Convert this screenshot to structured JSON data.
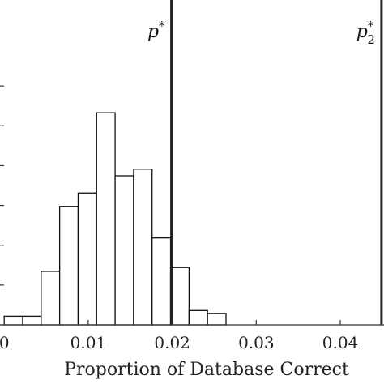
{
  "chart_data": {
    "type": "bar",
    "subtype": "histogram",
    "title": "",
    "xlabel": "Proportion of Database Correct",
    "ylabel": "",
    "xlim": [
      -0.0005,
      0.0452
    ],
    "ylim": [
      0,
      34
    ],
    "bin_width": 0.0022,
    "bins": [
      {
        "start": 0.0,
        "end": 0.0022,
        "count": 0.9
      },
      {
        "start": 0.0022,
        "end": 0.0044,
        "count": 0.9
      },
      {
        "start": 0.0044,
        "end": 0.0066,
        "count": 5.6
      },
      {
        "start": 0.0066,
        "end": 0.0088,
        "count": 12.4
      },
      {
        "start": 0.0088,
        "end": 0.011,
        "count": 13.8
      },
      {
        "start": 0.011,
        "end": 0.0132,
        "count": 22.2
      },
      {
        "start": 0.0132,
        "end": 0.0154,
        "count": 15.6
      },
      {
        "start": 0.0154,
        "end": 0.0176,
        "count": 16.3
      },
      {
        "start": 0.0176,
        "end": 0.0198,
        "count": 9.1
      },
      {
        "start": 0.0198,
        "end": 0.022,
        "count": 6.0
      },
      {
        "start": 0.022,
        "end": 0.0242,
        "count": 1.5
      },
      {
        "start": 0.0242,
        "end": 0.0264,
        "count": 1.2
      }
    ],
    "x_ticks": [
      {
        "value": 0,
        "label": "0"
      },
      {
        "value": 0.01,
        "label": "0.01"
      },
      {
        "value": 0.02,
        "label": "0.02"
      },
      {
        "value": 0.03,
        "label": "0.03"
      },
      {
        "value": 0.04,
        "label": "0.04"
      }
    ],
    "y_ticks": [
      0,
      4.167,
      8.333,
      12.5,
      16.667,
      20.833,
      25
    ],
    "vertical_lines": [
      {
        "x": 0.0199,
        "label_base": "p",
        "label_sup": "*",
        "label_sub": ""
      },
      {
        "x": 0.0449,
        "label_base": "p",
        "label_sup": "*",
        "label_sub": "2"
      }
    ],
    "grid": false,
    "legend": "none"
  }
}
